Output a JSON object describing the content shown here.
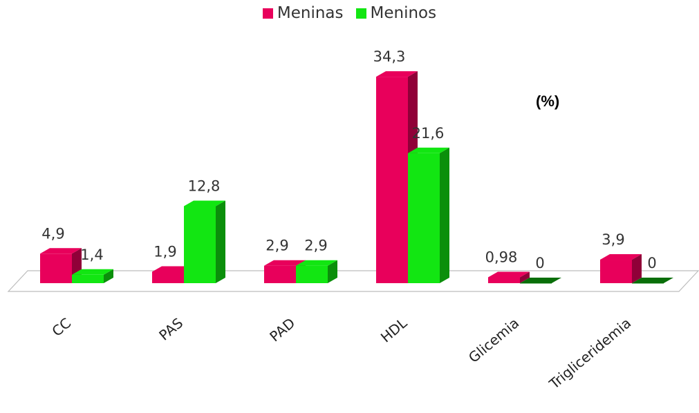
{
  "chart_data": {
    "type": "bar",
    "unit_label": "(%)",
    "categories": [
      "CC",
      "PAS",
      "PAD",
      "HDL",
      "Glicemia",
      "Trigliceridemia"
    ],
    "series": [
      {
        "name": "Meninas",
        "color": "#e8005b",
        "values": [
          4.9,
          1.9,
          2.9,
          34.3,
          0.98,
          3.9
        ],
        "labels": [
          "4,9",
          "1,9",
          "2,9",
          "34,3",
          "0,98",
          "3,9"
        ]
      },
      {
        "name": "Meninos",
        "color": "#12e612",
        "values": [
          1.4,
          12.8,
          2.9,
          21.6,
          0,
          0
        ],
        "labels": [
          "1,4",
          "12,8",
          "2,9",
          "21,6",
          "0",
          "0"
        ]
      }
    ],
    "ylim": [
      0,
      35
    ],
    "grid": false,
    "legend": "top-center"
  }
}
